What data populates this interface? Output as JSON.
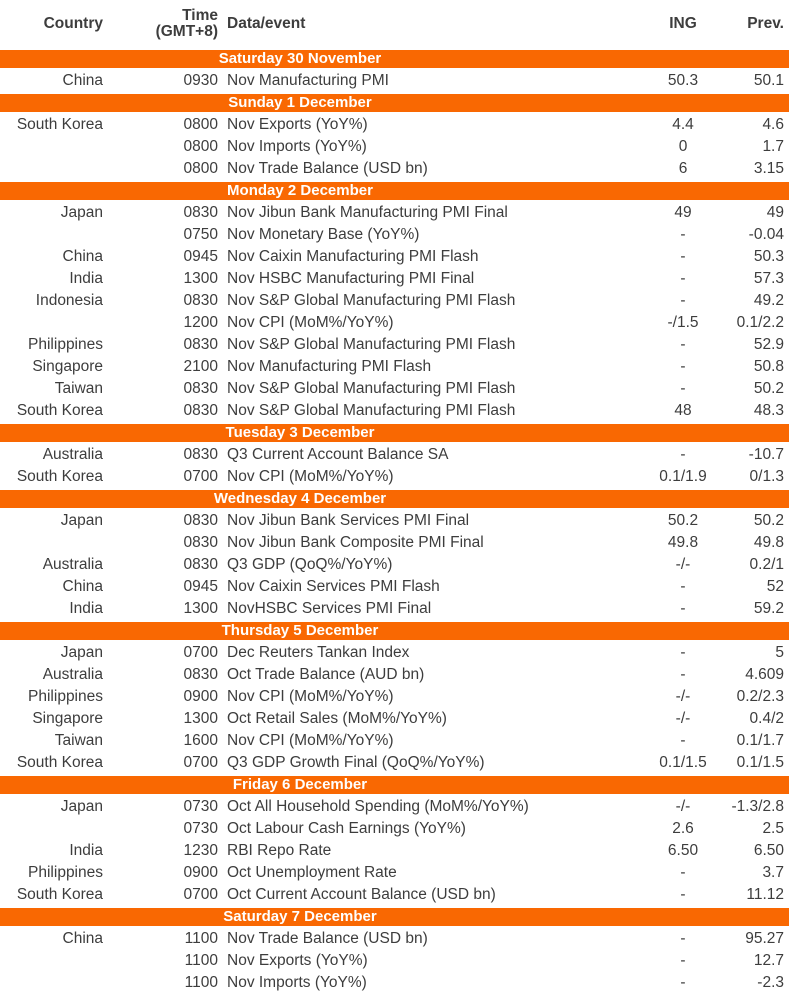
{
  "colors": {
    "band_background": "#F96802",
    "band_text": "#FFFFFF",
    "body_text": "#3D3D3D"
  },
  "table": {
    "header": {
      "country": "Country",
      "time_line1": "Time",
      "time_line2": "(GMT+8)",
      "event": "Data/event",
      "ing": "ING",
      "prev": "Prev."
    },
    "sections": [
      {
        "title": "Saturday 30 November",
        "rows": [
          {
            "country": "China",
            "time": "0930",
            "event": "Nov Manufacturing PMI",
            "ing": "50.3",
            "prev": "50.1"
          }
        ]
      },
      {
        "title": "Sunday 1 December",
        "rows": [
          {
            "country": "South Korea",
            "time": "0800",
            "event": "Nov Exports (YoY%)",
            "ing": "4.4",
            "prev": "4.6"
          },
          {
            "country": "",
            "time": "0800",
            "event": "Nov Imports (YoY%)",
            "ing": "0",
            "prev": "1.7"
          },
          {
            "country": "",
            "time": "0800",
            "event": "Nov Trade Balance (USD bn)",
            "ing": "6",
            "prev": "3.15"
          }
        ]
      },
      {
        "title": "Monday 2 December",
        "rows": [
          {
            "country": "Japan",
            "time": "0830",
            "event": "Nov Jibun Bank Manufacturing PMI Final",
            "ing": "49",
            "prev": "49"
          },
          {
            "country": "",
            "time": "0750",
            "event": "Nov Monetary Base (YoY%)",
            "ing": "-",
            "prev": "-0.04"
          },
          {
            "country": "China",
            "time": "0945",
            "event": "Nov Caixin Manufacturing PMI Flash",
            "ing": "-",
            "prev": "50.3"
          },
          {
            "country": "India",
            "time": "1300",
            "event": "Nov HSBC Manufacturing PMI Final",
            "ing": "-",
            "prev": "57.3"
          },
          {
            "country": "Indonesia",
            "time": "0830",
            "event": "Nov S&P Global Manufacturing PMI Flash",
            "ing": "-",
            "prev": "49.2"
          },
          {
            "country": "",
            "time": "1200",
            "event": "Nov CPI (MoM%/YoY%)",
            "ing": "-/1.5",
            "prev": "0.1/2.2"
          },
          {
            "country": "Philippines",
            "time": "0830",
            "event": "Nov S&P Global Manufacturing PMI Flash",
            "ing": "-",
            "prev": "52.9"
          },
          {
            "country": "Singapore",
            "time": "2100",
            "event": "Nov Manufacturing PMI Flash",
            "ing": "-",
            "prev": "50.8"
          },
          {
            "country": "Taiwan",
            "time": "0830",
            "event": "Nov S&P Global Manufacturing PMI Flash",
            "ing": "-",
            "prev": "50.2"
          },
          {
            "country": "South Korea",
            "time": "0830",
            "event": "Nov S&P Global Manufacturing PMI Flash",
            "ing": "48",
            "prev": "48.3"
          }
        ]
      },
      {
        "title": "Tuesday 3 December",
        "rows": [
          {
            "country": "Australia",
            "time": "0830",
            "event": "Q3 Current Account Balance SA",
            "ing": "-",
            "prev": "-10.7"
          },
          {
            "country": "South Korea",
            "time": "0700",
            "event": "Nov CPI (MoM%/YoY%)",
            "ing": "0.1/1.9",
            "prev": "0/1.3"
          }
        ]
      },
      {
        "title": "Wednesday 4 December",
        "rows": [
          {
            "country": "Japan",
            "time": "0830",
            "event": "Nov Jibun Bank Services PMI Final",
            "ing": "50.2",
            "prev": "50.2"
          },
          {
            "country": "",
            "time": "0830",
            "event": "Nov Jibun Bank Composite PMI Final",
            "ing": "49.8",
            "prev": "49.8"
          },
          {
            "country": "Australia",
            "time": "0830",
            "event": "Q3 GDP (QoQ%/YoY%)",
            "ing": "-/-",
            "prev": "0.2/1"
          },
          {
            "country": "China",
            "time": "0945",
            "event": "Nov Caixin Services PMI Flash",
            "ing": "-",
            "prev": "52"
          },
          {
            "country": "India",
            "time": "1300",
            "event": "NovHSBC Services PMI Final",
            "ing": "-",
            "prev": "59.2"
          }
        ]
      },
      {
        "title": "Thursday 5 December",
        "rows": [
          {
            "country": "Japan",
            "time": "0700",
            "event": "Dec Reuters Tankan Index",
            "ing": "-",
            "prev": "5"
          },
          {
            "country": "Australia",
            "time": "0830",
            "event": "Oct Trade Balance (AUD bn)",
            "ing": "-",
            "prev": "4.609"
          },
          {
            "country": "Philippines",
            "time": "0900",
            "event": "Nov CPI (MoM%/YoY%)",
            "ing": "-/-",
            "prev": "0.2/2.3"
          },
          {
            "country": "Singapore",
            "time": "1300",
            "event": "Oct Retail Sales (MoM%/YoY%)",
            "ing": "-/-",
            "prev": "0.4/2"
          },
          {
            "country": "Taiwan",
            "time": "1600",
            "event": "Nov CPI (MoM%/YoY%)",
            "ing": "-",
            "prev": "0.1/1.7"
          },
          {
            "country": "South Korea",
            "time": "0700",
            "event": "Q3 GDP Growth Final (QoQ%/YoY%)",
            "ing": "0.1/1.5",
            "prev": "0.1/1.5"
          }
        ]
      },
      {
        "title": "Friday 6 December",
        "rows": [
          {
            "country": "Japan",
            "time": "0730",
            "event": "Oct All Household Spending (MoM%/YoY%)",
            "ing": "-/-",
            "prev": "-1.3/2.8"
          },
          {
            "country": "",
            "time": "0730",
            "event": "Oct Labour Cash Earnings (YoY%)",
            "ing": "2.6",
            "prev": "2.5"
          },
          {
            "country": "India",
            "time": "1230",
            "event": "RBI Repo Rate",
            "ing": "6.50",
            "prev": "6.50"
          },
          {
            "country": "Philippines",
            "time": "0900",
            "event": "Oct Unemployment Rate",
            "ing": "-",
            "prev": "3.7"
          },
          {
            "country": "South Korea",
            "time": "0700",
            "event": "Oct Current Account Balance (USD bn)",
            "ing": "-",
            "prev": "11.12"
          }
        ]
      },
      {
        "title": "Saturday 7 December",
        "rows": [
          {
            "country": "China",
            "time": "1100",
            "event": "Nov Trade Balance (USD bn)",
            "ing": "-",
            "prev": "95.27"
          },
          {
            "country": "",
            "time": "1100",
            "event": "Nov Exports (YoY%)",
            "ing": "-",
            "prev": "12.7"
          },
          {
            "country": "",
            "time": "1100",
            "event": "Nov Imports (YoY%)",
            "ing": "-",
            "prev": "-2.3"
          }
        ]
      }
    ]
  }
}
